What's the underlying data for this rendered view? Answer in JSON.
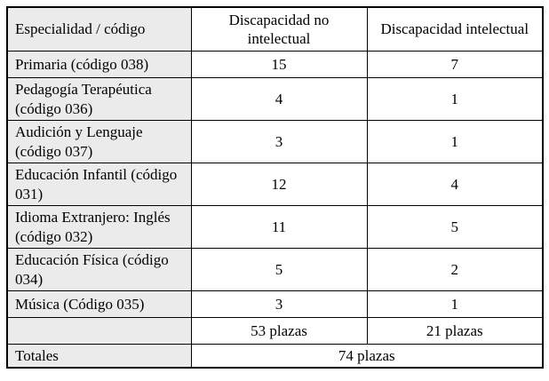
{
  "table": {
    "columns": [
      "Especialidad / código",
      "Discapacidad no intelectual",
      "Discapacidad intelectual"
    ],
    "rows": [
      {
        "label": "Primaria (código 038)",
        "no_intelectual": "15",
        "intelectual": "7"
      },
      {
        "label": "Pedagogía Terapéutica (código 036)",
        "no_intelectual": "4",
        "intelectual": "1"
      },
      {
        "label": "Audición y Lenguaje (código 037)",
        "no_intelectual": "3",
        "intelectual": "1"
      },
      {
        "label": "Educación Infantil (código 031)",
        "no_intelectual": "12",
        "intelectual": "4"
      },
      {
        "label": "Idioma Extranjero: Inglés (código 032)",
        "no_intelectual": "11",
        "intelectual": "5"
      },
      {
        "label": "Educación Física (código 034)",
        "no_intelectual": "5",
        "intelectual": "2"
      },
      {
        "label": "Música (Código 035)",
        "no_intelectual": "3",
        "intelectual": "1"
      }
    ],
    "subtotal_row": {
      "label": "",
      "no_intelectual": "53 plazas",
      "intelectual": "21 plazas"
    },
    "total_row": {
      "label": "Totales",
      "value": "74 plazas"
    }
  },
  "colors": {
    "row_header_bg": "#ebebeb",
    "border": "#000000",
    "cell_bg": "#ffffff"
  }
}
